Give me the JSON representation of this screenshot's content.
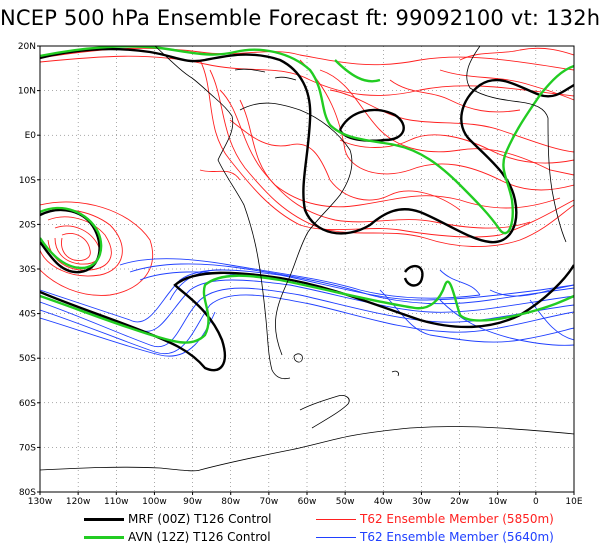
{
  "title": "NCEP 500 hPa Ensemble Forecast  ft: 99092100 vt: 132h",
  "map": {
    "region": "South America and South Atlantic",
    "lat_labels": [
      "20N",
      "10N",
      "E0",
      "10S",
      "20S",
      "30S",
      "40S",
      "50S",
      "60S",
      "70S",
      "80S"
    ],
    "lon_labels": [
      "130w",
      "120w",
      "110w",
      "100w",
      "90w",
      "80w",
      "70w",
      "60w",
      "50w",
      "40w",
      "30w",
      "20w",
      "10w",
      "0",
      "10E"
    ],
    "grid": "dotted"
  },
  "legend": [
    {
      "label": "MRF (00Z) T126 Control",
      "color": "#000000",
      "style": "thick"
    },
    {
      "label": "AVN (12Z) T126 Control",
      "color": "#22cc22",
      "style": "thick"
    },
    {
      "label": "T62 Ensemble Member (5850m)",
      "color": "#ff2020",
      "style": "thin"
    },
    {
      "label": "T62 Ensemble Member (5640m)",
      "color": "#2040ff",
      "style": "thin"
    }
  ],
  "colors": {
    "coast": "#000000",
    "red_members": "#ff2020",
    "blue_members": "#2040ff",
    "mrf": "#000000",
    "avn": "#22cc22"
  }
}
